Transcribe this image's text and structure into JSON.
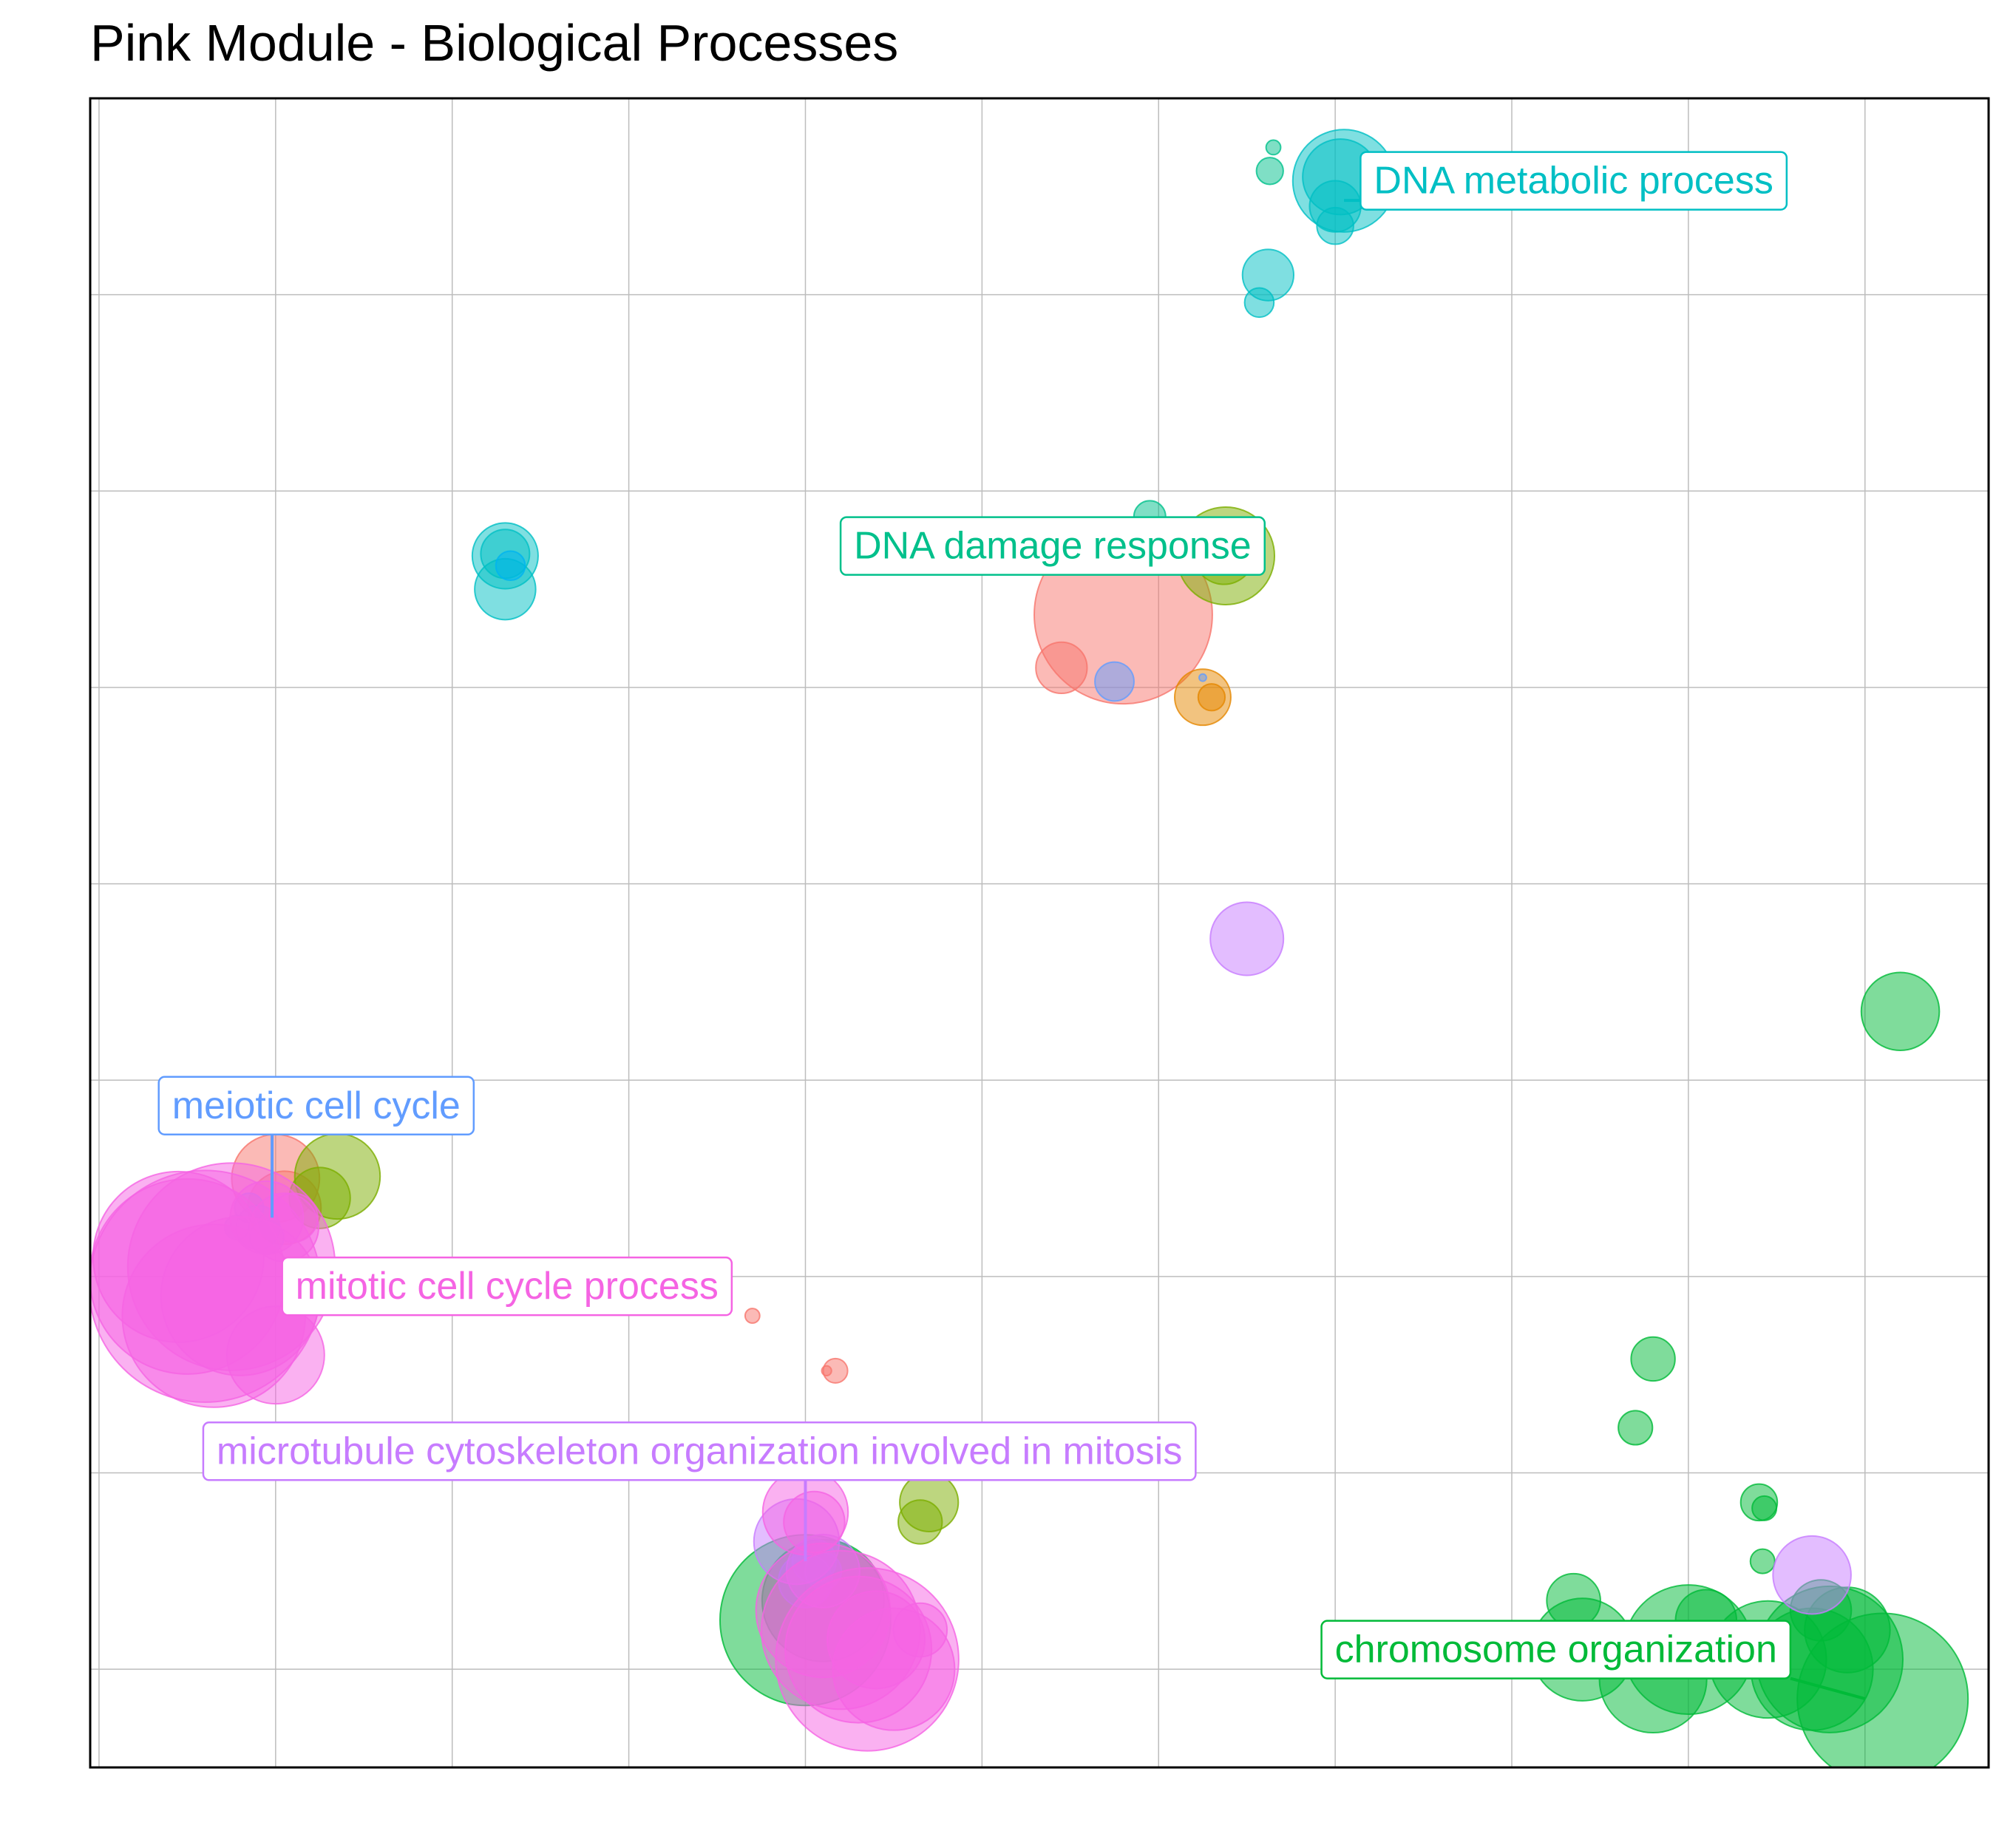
{
  "chart_data": {
    "type": "scatter",
    "title": "Pink Module - Biological Processes",
    "xlabel": "",
    "ylabel": "",
    "xlim": [
      -0.05,
      10.7
    ],
    "ylim": [
      -0.5,
      8.0
    ],
    "grid": true,
    "legend": "none",
    "point_opacity": 0.5,
    "series": [
      {
        "name": "",
        "color": "#F8766D",
        "points": [
          {
            "x": 5.8,
            "y": 5.37,
            "size": 7.3
          },
          {
            "x": 5.45,
            "y": 5.1,
            "size": 2.1
          },
          {
            "x": 1.0,
            "y": 2.5,
            "size": 3.6
          },
          {
            "x": 1.05,
            "y": 2.35,
            "size": 3.0
          },
          {
            "x": 3.7,
            "y": 1.8,
            "size": 0.6
          },
          {
            "x": 4.17,
            "y": 1.52,
            "size": 1.0
          },
          {
            "x": 4.12,
            "y": 1.52,
            "size": 0.4
          }
        ]
      },
      {
        "name": "",
        "color": "#E58700",
        "points": [
          {
            "x": 6.25,
            "y": 4.95,
            "size": 2.3
          },
          {
            "x": 6.3,
            "y": 4.95,
            "size": 1.1
          }
        ]
      },
      {
        "name": "",
        "color": "#7CAE00",
        "points": [
          {
            "x": 6.38,
            "y": 5.67,
            "size": 4.0
          },
          {
            "x": 6.37,
            "y": 5.68,
            "size": 2.5
          },
          {
            "x": 1.35,
            "y": 2.51,
            "size": 3.5
          },
          {
            "x": 1.25,
            "y": 2.4,
            "size": 2.5
          },
          {
            "x": 4.7,
            "y": 0.85,
            "size": 2.4
          },
          {
            "x": 4.65,
            "y": 0.75,
            "size": 1.8
          }
        ]
      },
      {
        "name": "",
        "color": "#00BA38",
        "points": [
          {
            "x": 10.2,
            "y": 3.35,
            "size": 3.2
          },
          {
            "x": 8.8,
            "y": 1.58,
            "size": 1.8
          },
          {
            "x": 9.4,
            "y": 0.85,
            "size": 1.5
          },
          {
            "x": 9.43,
            "y": 0.82,
            "size": 1.0
          },
          {
            "x": 8.7,
            "y": 1.23,
            "size": 1.4
          },
          {
            "x": 9.42,
            "y": 0.55,
            "size": 1.0
          },
          {
            "x": 8.35,
            "y": 0.35,
            "size": 2.2
          },
          {
            "x": 8.4,
            "y": 0.1,
            "size": 4.2
          },
          {
            "x": 8.8,
            "y": -0.05,
            "size": 4.4
          },
          {
            "x": 9.0,
            "y": 0.1,
            "size": 5.3
          },
          {
            "x": 9.1,
            "y": 0.25,
            "size": 2.5
          },
          {
            "x": 9.45,
            "y": 0.05,
            "size": 4.8
          },
          {
            "x": 9.8,
            "y": 0.05,
            "size": 6.0
          },
          {
            "x": 9.7,
            "y": 0.0,
            "size": 5.0
          },
          {
            "x": 10.1,
            "y": -0.15,
            "size": 7.0
          },
          {
            "x": 9.9,
            "y": 0.2,
            "size": 3.5
          },
          {
            "x": 9.75,
            "y": 0.3,
            "size": 2.5
          },
          {
            "x": 4.0,
            "y": 0.25,
            "size": 7.0
          },
          {
            "x": 4.1,
            "y": 0.35,
            "size": 5.0
          }
        ]
      },
      {
        "name": "",
        "color": "#00C08B",
        "points": [
          {
            "x": 6.65,
            "y": 7.75,
            "size": 0.6
          },
          {
            "x": 6.63,
            "y": 7.63,
            "size": 1.1
          },
          {
            "x": 5.95,
            "y": 5.87,
            "size": 1.3
          }
        ]
      },
      {
        "name": "",
        "color": "#00BFC4",
        "points": [
          {
            "x": 7.05,
            "y": 7.58,
            "size": 4.2
          },
          {
            "x": 7.03,
            "y": 7.6,
            "size": 3.1
          },
          {
            "x": 7.0,
            "y": 7.45,
            "size": 2.1
          },
          {
            "x": 7.0,
            "y": 7.35,
            "size": 1.5
          },
          {
            "x": 6.62,
            "y": 7.1,
            "size": 2.1
          },
          {
            "x": 6.57,
            "y": 6.96,
            "size": 1.2
          },
          {
            "x": 2.3,
            "y": 5.67,
            "size": 2.7
          },
          {
            "x": 2.3,
            "y": 5.5,
            "size": 2.5
          },
          {
            "x": 2.3,
            "y": 5.68,
            "size": 2.0
          }
        ]
      },
      {
        "name": "",
        "color": "#00B4F0",
        "points": [
          {
            "x": 2.33,
            "y": 5.62,
            "size": 1.2
          }
        ]
      },
      {
        "name": "",
        "color": "#619CFF",
        "points": [
          {
            "x": 5.75,
            "y": 5.03,
            "size": 1.6
          },
          {
            "x": 0.9,
            "y": 2.25,
            "size": 1.8
          },
          {
            "x": 0.85,
            "y": 2.35,
            "size": 1.2
          },
          {
            "x": 0.78,
            "y": 2.25,
            "size": 1.0
          },
          {
            "x": 0.95,
            "y": 2.2,
            "size": 1.4
          },
          {
            "x": 4.0,
            "y": 0.45,
            "size": 2.2
          },
          {
            "x": 4.05,
            "y": 0.55,
            "size": 1.8
          },
          {
            "x": 4.1,
            "y": 0.5,
            "size": 1.5
          },
          {
            "x": 6.25,
            "y": 5.05,
            "size": 0.3
          }
        ]
      },
      {
        "name": "",
        "color": "#C77CFF",
        "points": [
          {
            "x": 6.5,
            "y": 3.72,
            "size": 3.0
          },
          {
            "x": 9.7,
            "y": 0.48,
            "size": 3.2
          },
          {
            "x": 3.95,
            "y": 0.65,
            "size": 3.5
          },
          {
            "x": 4.1,
            "y": 0.5,
            "size": 3.0
          }
        ]
      },
      {
        "name": "",
        "color": "#F564E3",
        "points": [
          {
            "x": 0.6,
            "y": 1.95,
            "size": 9.5
          },
          {
            "x": 0.75,
            "y": 2.05,
            "size": 8.5
          },
          {
            "x": 0.5,
            "y": 2.0,
            "size": 8.0
          },
          {
            "x": 0.65,
            "y": 1.8,
            "size": 7.5
          },
          {
            "x": 0.45,
            "y": 2.1,
            "size": 7.0
          },
          {
            "x": 0.8,
            "y": 1.9,
            "size": 6.5
          },
          {
            "x": 1.0,
            "y": 1.6,
            "size": 4.0
          },
          {
            "x": 0.95,
            "y": 2.3,
            "size": 3.0
          },
          {
            "x": 1.05,
            "y": 2.25,
            "size": 2.8
          },
          {
            "x": 1.1,
            "y": 2.3,
            "size": 2.0
          },
          {
            "x": 4.35,
            "y": 0.05,
            "size": 7.5
          },
          {
            "x": 4.2,
            "y": 0.2,
            "size": 6.5
          },
          {
            "x": 4.3,
            "y": 0.1,
            "size": 6.0
          },
          {
            "x": 4.1,
            "y": 0.3,
            "size": 5.5
          },
          {
            "x": 4.5,
            "y": 0.0,
            "size": 5.0
          },
          {
            "x": 4.0,
            "y": 0.8,
            "size": 3.5
          },
          {
            "x": 4.05,
            "y": 0.75,
            "size": 2.5
          },
          {
            "x": 4.65,
            "y": 0.2,
            "size": 2.2
          },
          {
            "x": 4.4,
            "y": 0.15,
            "size": 4.0
          }
        ]
      }
    ],
    "annotations": [
      {
        "text": "DNA metabolic process",
        "color": "#00BFC4",
        "label_x": 8.35,
        "label_y": 7.58,
        "anchor": "middle",
        "point_x": 7.05,
        "point_y": 7.48
      },
      {
        "text": "DNA damage response",
        "color": "#00C08B",
        "label_x": 5.4,
        "label_y": 5.72,
        "anchor": "middle",
        "point_x": 5.95,
        "point_y": 5.87
      },
      {
        "text": "meiotic cell cycle",
        "color": "#619CFF",
        "label_x": 1.23,
        "label_y": 2.87,
        "anchor": "middle",
        "point_x": 0.98,
        "point_y": 2.3
      },
      {
        "text": "mitotic cell cycle process",
        "color": "#F564E3",
        "label_x": 2.31,
        "label_y": 1.95,
        "anchor": "middle",
        "point_x": 1.6,
        "point_y": 2.0
      },
      {
        "text": "microtubule cytoskeleton organization involved in mitosis",
        "color": "#C77CFF",
        "label_x": 3.4,
        "label_y": 1.11,
        "anchor": "middle",
        "point_x": 4.0,
        "point_y": 0.55
      },
      {
        "text": "chromosome organization",
        "color": "#00BA38",
        "label_x": 8.25,
        "label_y": 0.1,
        "anchor": "middle",
        "point_x": 10.0,
        "point_y": -0.15
      }
    ]
  }
}
